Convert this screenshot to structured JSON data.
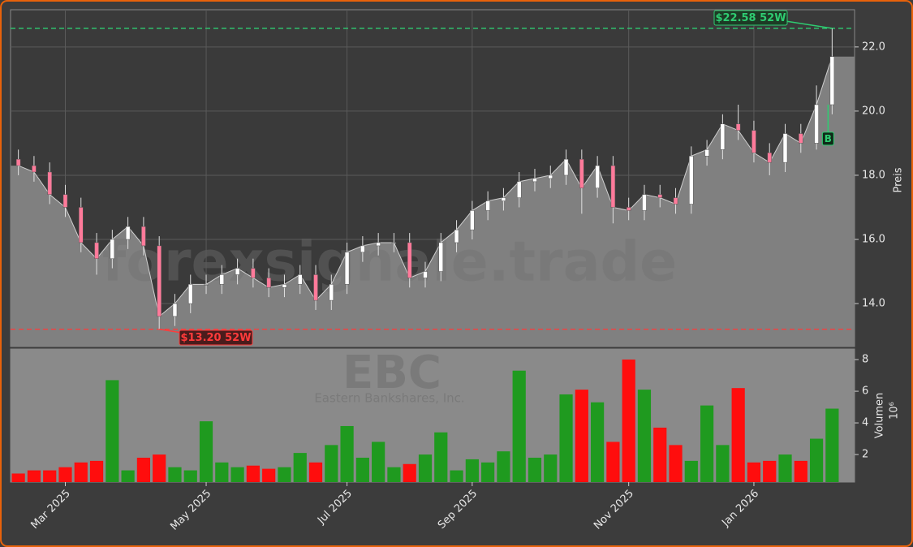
{
  "chart_data": {
    "type": "candlestick",
    "watermark": "forexsignale.trade",
    "symbol": "EBC",
    "company": "Eastern Bankshares, Inc.",
    "y_label": "Preis",
    "y2_label": "Volumen",
    "y2_unit": "10⁶",
    "categories": [
      null,
      null,
      null,
      "Mar 2025",
      null,
      null,
      null,
      null,
      null,
      null,
      null,
      null,
      "May 2025",
      null,
      null,
      null,
      null,
      null,
      null,
      null,
      null,
      "Jul 2025",
      null,
      null,
      null,
      null,
      null,
      null,
      null,
      "Sep 2025",
      null,
      null,
      null,
      null,
      null,
      null,
      null,
      null,
      null,
      "Nov 2025",
      null,
      null,
      null,
      null,
      null,
      null,
      null,
      "Jan 2026",
      null,
      null,
      null,
      null,
      null
    ],
    "open": [
      18.5,
      18.3,
      18.1,
      17.4,
      17.0,
      15.9,
      15.4,
      16.0,
      16.4,
      15.8,
      13.6,
      14.0,
      14.6,
      14.6,
      14.9,
      15.1,
      14.8,
      14.5,
      14.6,
      14.9,
      14.1,
      14.6,
      15.6,
      15.8,
      15.9,
      15.9,
      14.8,
      15.0,
      15.9,
      16.3,
      16.9,
      17.2,
      17.3,
      17.8,
      17.9,
      18.0,
      18.5,
      17.6,
      18.3,
      17.0,
      16.9,
      17.4,
      17.3,
      17.1,
      18.6,
      18.8,
      19.6,
      19.4,
      18.7,
      18.4,
      19.3,
      19.0,
      20.2
    ],
    "high": [
      18.8,
      18.6,
      18.4,
      17.7,
      17.3,
      16.2,
      16.3,
      16.7,
      16.7,
      16.1,
      14.3,
      14.9,
      14.9,
      15.2,
      15.4,
      15.4,
      15.1,
      14.9,
      15.2,
      15.2,
      14.9,
      15.9,
      16.1,
      16.2,
      16.2,
      16.2,
      15.3,
      16.2,
      16.6,
      17.2,
      17.5,
      17.6,
      18.1,
      18.2,
      18.3,
      18.8,
      18.8,
      18.6,
      18.6,
      17.3,
      17.7,
      17.7,
      17.6,
      18.9,
      19.1,
      19.9,
      20.2,
      19.7,
      19.0,
      19.6,
      19.6,
      20.8,
      22.58
    ],
    "low": [
      18.0,
      17.8,
      17.1,
      16.7,
      15.6,
      14.9,
      15.1,
      15.7,
      15.5,
      13.2,
      13.3,
      13.7,
      14.3,
      14.3,
      14.6,
      14.5,
      14.2,
      14.2,
      14.3,
      13.8,
      13.8,
      14.3,
      15.3,
      15.5,
      15.6,
      14.5,
      14.5,
      14.7,
      15.6,
      16.0,
      16.6,
      16.9,
      17.0,
      17.5,
      17.6,
      17.7,
      16.8,
      17.3,
      16.5,
      16.6,
      16.6,
      17.0,
      16.8,
      16.8,
      18.3,
      18.5,
      19.1,
      18.4,
      18.0,
      18.1,
      18.7,
      18.8,
      19.9
    ],
    "close": [
      18.3,
      18.1,
      17.4,
      17.0,
      15.9,
      15.4,
      16.0,
      16.4,
      15.8,
      13.6,
      14.0,
      14.6,
      14.6,
      14.9,
      15.1,
      14.8,
      14.5,
      14.6,
      14.9,
      14.1,
      14.6,
      15.6,
      15.8,
      15.9,
      15.9,
      14.8,
      15.0,
      15.9,
      16.3,
      16.9,
      17.2,
      17.3,
      17.8,
      17.9,
      18.0,
      18.5,
      17.6,
      18.3,
      17.0,
      16.9,
      17.4,
      17.3,
      17.1,
      18.6,
      18.8,
      19.6,
      19.4,
      18.7,
      18.4,
      19.3,
      19.0,
      20.2,
      21.7
    ],
    "volume": [
      0.8,
      1.0,
      1.0,
      1.2,
      1.5,
      1.6,
      6.7,
      1.0,
      1.8,
      2.0,
      1.2,
      1.0,
      4.1,
      1.5,
      1.2,
      1.3,
      1.1,
      1.2,
      2.1,
      1.5,
      2.6,
      3.8,
      1.8,
      2.8,
      1.2,
      1.4,
      2.0,
      3.4,
      1.0,
      1.7,
      1.5,
      2.2,
      7.3,
      1.8,
      2.0,
      5.8,
      6.1,
      5.3,
      2.8,
      8.0,
      6.1,
      3.7,
      2.6,
      1.6,
      5.1,
      2.6,
      6.2,
      1.5,
      1.6,
      2.0,
      1.6,
      3.0,
      4.9
    ],
    "ylim": [
      12.66,
      23.16
    ],
    "yticks": [
      {
        "value": 14,
        "label": "14.0"
      },
      {
        "value": 16,
        "label": "16.0"
      },
      {
        "value": 18,
        "label": "18.0"
      },
      {
        "value": 20,
        "label": "20.0"
      },
      {
        "value": 22,
        "label": "22.0"
      }
    ],
    "y2lim": [
      0.26,
      8.67
    ],
    "y2ticks": [
      2,
      4,
      6,
      8
    ],
    "grid": true,
    "candle_up_color": "#ffffff",
    "candle_down_color": "#ff7a9a",
    "volume_up_color": "#1f9a1f",
    "volume_down_color": "#ff0d0d",
    "area_color": "#808080",
    "high_52w": {
      "value": 22.58,
      "label": "$22.58 52W",
      "color": "#2ecc71"
    },
    "low_52w": {
      "value": 13.2,
      "label": "$13.20 52W",
      "color": "#ff3b3b"
    },
    "signal": {
      "label": "B",
      "color": "#2ecc71"
    }
  }
}
